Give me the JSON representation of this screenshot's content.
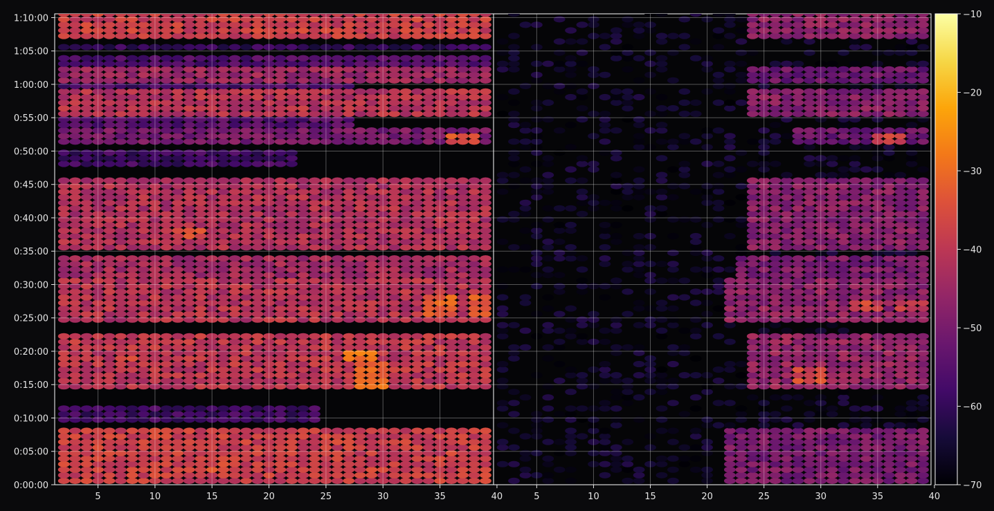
{
  "chart_data": {
    "type": "heatmap",
    "title": "",
    "xlabel": "",
    "ylabel": "",
    "colormap": "inferno",
    "background": "#0a0a0c",
    "grid": true,
    "y_tick_labels": [
      "0:00:00",
      "0:05:00",
      "0:10:00",
      "0:15:00",
      "0:20:00",
      "0:25:00",
      "0:30:00",
      "0:35:00",
      "0:40:00",
      "0:45:00",
      "0:50:00",
      "0:55:00",
      "1:00:00",
      "1:05:00",
      "1:10:00"
    ],
    "y_tick_seconds": [
      0,
      300,
      600,
      900,
      1200,
      1500,
      1800,
      2100,
      2400,
      2700,
      3000,
      3300,
      3600,
      3900,
      4200
    ],
    "ylim_seconds": [
      0,
      4234
    ],
    "panels": [
      {
        "name": "left",
        "xlim": [
          1.2,
          39.7
        ],
        "x_ticks": [
          5,
          10,
          15,
          20,
          25,
          30,
          35,
          40
        ],
        "x_tick_labels": [
          "5",
          "10",
          "15",
          "20",
          "25",
          "30",
          "35",
          "40"
        ],
        "bands": [
          {
            "start_s": 0,
            "end_s": 470,
            "level": -38,
            "xmax": 39.7
          },
          {
            "start_s": 540,
            "end_s": 700,
            "level": -58,
            "xmax": 24
          },
          {
            "start_s": 830,
            "end_s": 1330,
            "level": -40,
            "xmax": 39.7
          },
          {
            "start_s": 1460,
            "end_s": 1810,
            "level": -41,
            "xmax": 39.7
          },
          {
            "start_s": 1830,
            "end_s": 2010,
            "level": -44,
            "xmax": 39.7
          },
          {
            "start_s": 2100,
            "end_s": 2710,
            "level": -42,
            "xmax": 39.7
          },
          {
            "start_s": 2850,
            "end_s": 3000,
            "level": -58,
            "xmax": 22
          },
          {
            "start_s": 3030,
            "end_s": 3170,
            "level": -50,
            "xmax": 39.7
          },
          {
            "start_s": 3190,
            "end_s": 3290,
            "level": -55,
            "xmax": 27
          },
          {
            "start_s": 3300,
            "end_s": 3530,
            "level": -41,
            "xmax": 39.7
          },
          {
            "start_s": 3530,
            "end_s": 3600,
            "level": -57,
            "xmax": 27
          },
          {
            "start_s": 3610,
            "end_s": 3710,
            "level": -45,
            "xmax": 39.7
          },
          {
            "start_s": 3760,
            "end_s": 3820,
            "level": -56,
            "xmax": 39.7
          },
          {
            "start_s": 3880,
            "end_s": 3920,
            "level": -60,
            "xmax": 39.7
          },
          {
            "start_s": 3980,
            "end_s": 4234,
            "level": -38,
            "xmax": 39.7
          }
        ]
      },
      {
        "name": "right",
        "xlim": [
          1.2,
          39.7
        ],
        "x_ticks": [
          5,
          10,
          15,
          20,
          25,
          30,
          35,
          40
        ],
        "x_tick_labels": [
          "5",
          "10",
          "15",
          "20",
          "25",
          "30",
          "35",
          "40"
        ],
        "faint_level": -66,
        "bands": [
          {
            "start_s": 0,
            "end_s": 470,
            "level": -50,
            "xmin": 22
          },
          {
            "start_s": 830,
            "end_s": 1330,
            "level": -46,
            "xmin": 24
          },
          {
            "start_s": 1460,
            "end_s": 1810,
            "level": -47,
            "xmin": 22
          },
          {
            "start_s": 1830,
            "end_s": 2010,
            "level": -50,
            "xmin": 23
          },
          {
            "start_s": 2100,
            "end_s": 2710,
            "level": -48,
            "xmin": 24
          },
          {
            "start_s": 3030,
            "end_s": 3170,
            "level": -52,
            "xmin": 28
          },
          {
            "start_s": 3300,
            "end_s": 3530,
            "level": -48,
            "xmin": 24
          },
          {
            "start_s": 3610,
            "end_s": 3710,
            "level": -52,
            "xmin": 24
          },
          {
            "start_s": 3980,
            "end_s": 4234,
            "level": -47,
            "xmin": 24
          }
        ],
        "hotspots": [
          {
            "x": 29,
            "start_s": 900,
            "end_s": 1050,
            "level": -36
          },
          {
            "x": 34,
            "start_s": 1520,
            "end_s": 1620,
            "level": -37
          },
          {
            "x": 38,
            "start_s": 1520,
            "end_s": 1620,
            "level": -38
          },
          {
            "x": 36,
            "start_s": 3050,
            "end_s": 3130,
            "level": -38
          }
        ]
      }
    ],
    "left_hotspots": [
      {
        "x": 29,
        "start_s": 850,
        "end_s": 1080,
        "level": -30
      },
      {
        "x": 28,
        "start_s": 1080,
        "end_s": 1170,
        "level": -28
      },
      {
        "x": 35,
        "start_s": 1500,
        "end_s": 1680,
        "level": -32
      },
      {
        "x": 39,
        "start_s": 1480,
        "end_s": 1660,
        "level": -33
      },
      {
        "x": 13,
        "start_s": 2200,
        "end_s": 2280,
        "level": -36
      },
      {
        "x": 37,
        "start_s": 3030,
        "end_s": 3150,
        "level": -34
      },
      {
        "x": 8,
        "start_s": 1100,
        "end_s": 1200,
        "level": -37
      },
      {
        "x": 15,
        "start_s": 100,
        "end_s": 200,
        "level": -36
      }
    ],
    "colorbar": {
      "min": -70,
      "max": -10,
      "ticks": [
        -10,
        -20,
        -30,
        -40,
        -50,
        -60,
        -70
      ],
      "tick_labels": [
        "−10",
        "−20",
        "−30",
        "−40",
        "−50",
        "−60",
        "−70"
      ]
    }
  }
}
